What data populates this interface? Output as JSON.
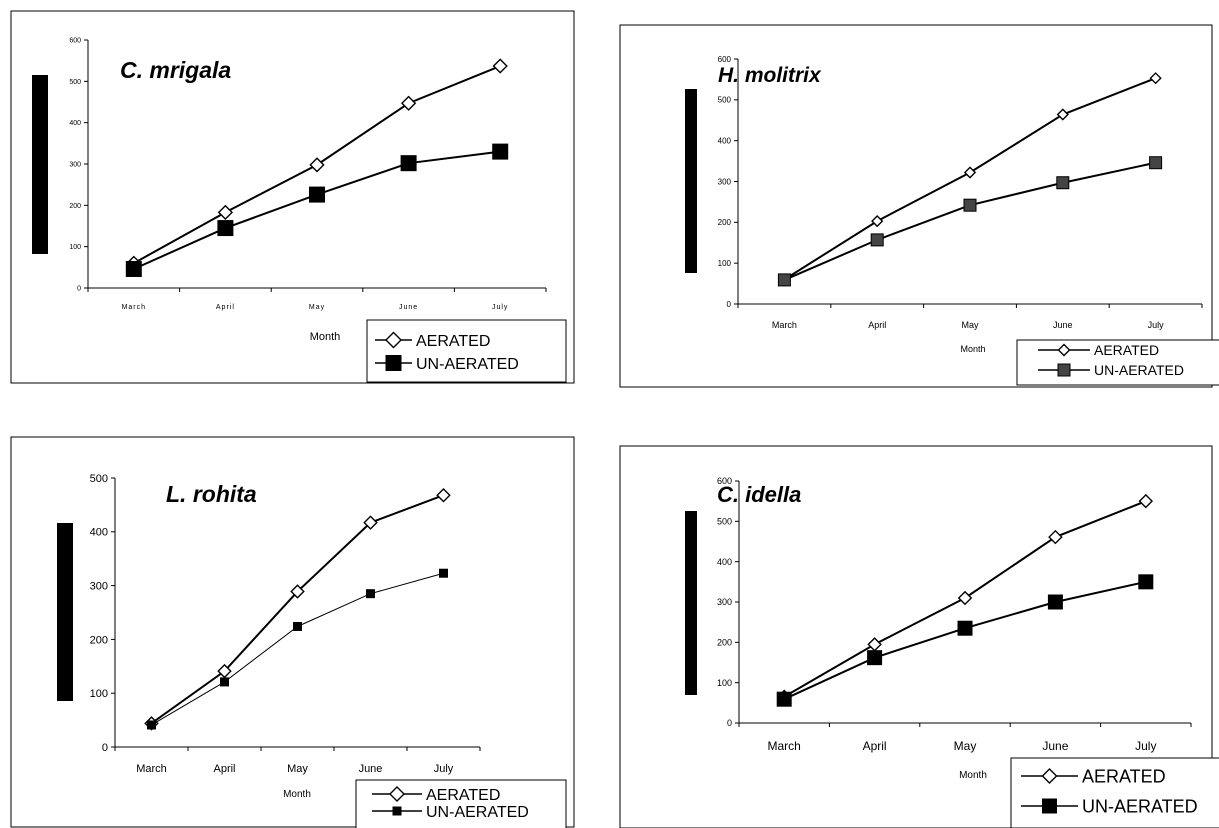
{
  "chart_data": [
    {
      "type": "line",
      "title": "C. mrigala",
      "xlabel": "Month",
      "ylabel": "",
      "categories": [
        "March",
        "April",
        "May",
        "June",
        "July"
      ],
      "yticks": [
        "0",
        "100",
        "200",
        "300",
        "400",
        "500",
        "600"
      ],
      "ylim": [
        0,
        600
      ],
      "legend_position": "bottom-right",
      "series": [
        {
          "name": "AERATED",
          "marker": "diamond",
          "values": [
            60,
            183,
            298,
            447,
            537
          ]
        },
        {
          "name": "UN-AERATED",
          "marker": "square",
          "values": [
            46,
            145,
            226,
            302,
            330
          ]
        }
      ]
    },
    {
      "type": "line",
      "title": "H. molitrix",
      "xlabel": "Month",
      "ylabel": "",
      "categories": [
        "March",
        "April",
        "May",
        "June",
        "July"
      ],
      "yticks": [
        "0",
        "100",
        "200",
        "300",
        "400",
        "500",
        "600"
      ],
      "ylim": [
        0,
        600
      ],
      "legend_position": "bottom-right",
      "series": [
        {
          "name": "AERATED",
          "marker": "diamond",
          "values": [
            60,
            203,
            322,
            464,
            553
          ]
        },
        {
          "name": "UN-AERATED",
          "marker": "square",
          "values": [
            59,
            157,
            242,
            297,
            346
          ]
        }
      ]
    },
    {
      "type": "line",
      "title": "L. rohita",
      "xlabel": "Month",
      "ylabel": "",
      "categories": [
        "March",
        "April",
        "May",
        "June",
        "July"
      ],
      "yticks": [
        "0",
        "100",
        "200",
        "300",
        "400",
        "500"
      ],
      "ylim": [
        0,
        500
      ],
      "legend_position": "bottom-right",
      "series": [
        {
          "name": "AERATED",
          "marker": "diamond",
          "values": [
            44,
            141,
            289,
            417,
            468
          ]
        },
        {
          "name": "UN-AERATED",
          "marker": "square",
          "values": [
            41,
            121,
            224,
            285,
            323
          ]
        }
      ]
    },
    {
      "type": "line",
      "title": "C. idella",
      "xlabel": "Month",
      "ylabel": "",
      "categories": [
        "March",
        "April",
        "May",
        "June",
        "July"
      ],
      "yticks": [
        "0",
        "100",
        "200",
        "300",
        "400",
        "500",
        "600"
      ],
      "ylim": [
        0,
        600
      ],
      "legend_position": "bottom-right",
      "series": [
        {
          "name": "AERATED",
          "marker": "diamond",
          "values": [
            65,
            195,
            310,
            461,
            550
          ]
        },
        {
          "name": "UN-AERATED",
          "marker": "square",
          "values": [
            59,
            162,
            235,
            300,
            350
          ]
        }
      ]
    }
  ],
  "colors": {
    "line": "#000000",
    "frame": "#000000",
    "background": "#ffffff"
  }
}
